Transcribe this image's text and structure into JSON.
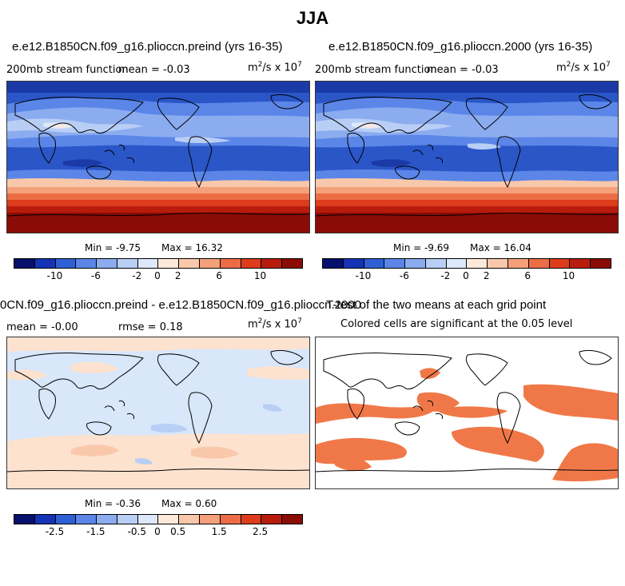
{
  "figure_title": "JJA",
  "units_label": "m²/s x 10⁷",
  "panels": {
    "top_left": {
      "title": "e.e12.B1850CN.f09_g16.plioccn.preind (yrs 16-35)",
      "variable": "200mb stream function",
      "mean_text": "mean =  -0.03",
      "min_text": "Min =  -9.75",
      "max_text": "Max =  16.32"
    },
    "top_right": {
      "title": "e.e12.B1850CN.f09_g16.plioccn.2000 (yrs 16-35)",
      "variable": "200mb stream function",
      "mean_text": "mean =  -0.03",
      "min_text": "Min =  -9.69",
      "max_text": "Max =  16.04"
    },
    "bottom_left": {
      "title": "0CN.f09_g16.plioccn.preind - e.e12.B1850CN.f09_g16.plioccn.2000",
      "mean_text": "mean =  -0.00",
      "rmse_text": "rmse =  0.18",
      "min_text": "Min =  -0.36",
      "max_text": "Max =  0.60"
    },
    "bottom_right": {
      "title": "T-test of the two means at each grid point",
      "subtitle": "Colored cells are significant at the 0.05 level"
    }
  },
  "colorbars": {
    "colors": [
      "#08106e",
      "#1533b5",
      "#2f5fd5",
      "#5b86e8",
      "#8cacf0",
      "#b8cef5",
      "#dde8fa",
      "#fde9d9",
      "#f9c8ab",
      "#f4a07a",
      "#ec6d45",
      "#dd3d1c",
      "#b81c0c",
      "#8b0c06"
    ],
    "top_ticks": [
      "-10",
      "-6",
      "-2",
      "0",
      "2",
      "6",
      "10"
    ],
    "diff_ticks": [
      "-2.5",
      "-1.5",
      "-0.5",
      "0",
      "0.5",
      "1.5",
      "2.5"
    ]
  },
  "colors": {
    "significant": "#f07848",
    "diff_neutral": "#d8e7fa",
    "diff_positive": "#fde2cf"
  }
}
